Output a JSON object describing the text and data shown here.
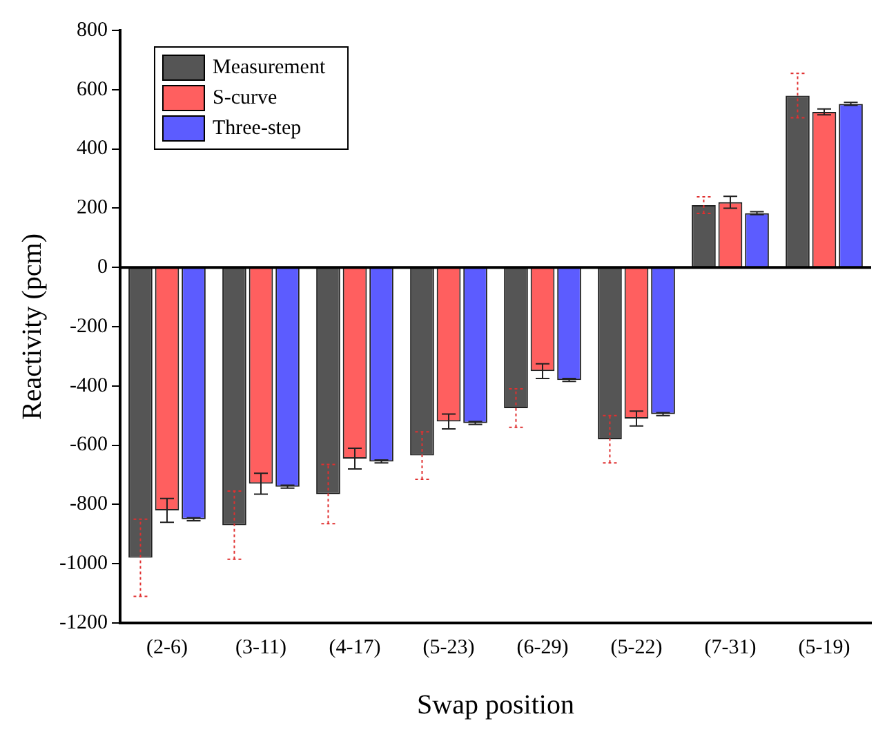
{
  "chart_data": {
    "type": "bar",
    "xlabel": "Swap position",
    "ylabel": "Reactivity (pcm)",
    "categories": [
      "(2-6)",
      "(3-11)",
      "(4-17)",
      "(5-23)",
      "(6-29)",
      "(5-22)",
      "(7-31)",
      "(5-19)"
    ],
    "series": [
      {
        "name": "Measurement",
        "color": "#555555",
        "values": [
          -980,
          -870,
          -765,
          -635,
          -475,
          -580,
          210,
          580
        ],
        "errors": [
          130,
          115,
          100,
          80,
          65,
          80,
          28,
          75
        ]
      },
      {
        "name": "S-curve",
        "color": "#ff5f5f",
        "values": [
          -820,
          -730,
          -645,
          -520,
          -350,
          -510,
          220,
          525
        ],
        "errors": [
          40,
          35,
          35,
          25,
          25,
          25,
          20,
          10
        ]
      },
      {
        "name": "Three-step",
        "color": "#5c5cff",
        "values": [
          -850,
          -740,
          -655,
          -525,
          -380,
          -495,
          183,
          552
        ],
        "errors": [
          5,
          5,
          5,
          5,
          5,
          5,
          5,
          5
        ]
      }
    ],
    "ylim": [
      -1200,
      800
    ],
    "yticks": [
      -1200,
      -1000,
      -800,
      -600,
      -400,
      -200,
      0,
      200,
      400,
      600,
      800
    ],
    "ref_lines": [
      {
        "axis": "y",
        "value": 0,
        "color": "#000000"
      }
    ],
    "grid": false,
    "legend": "top left"
  }
}
